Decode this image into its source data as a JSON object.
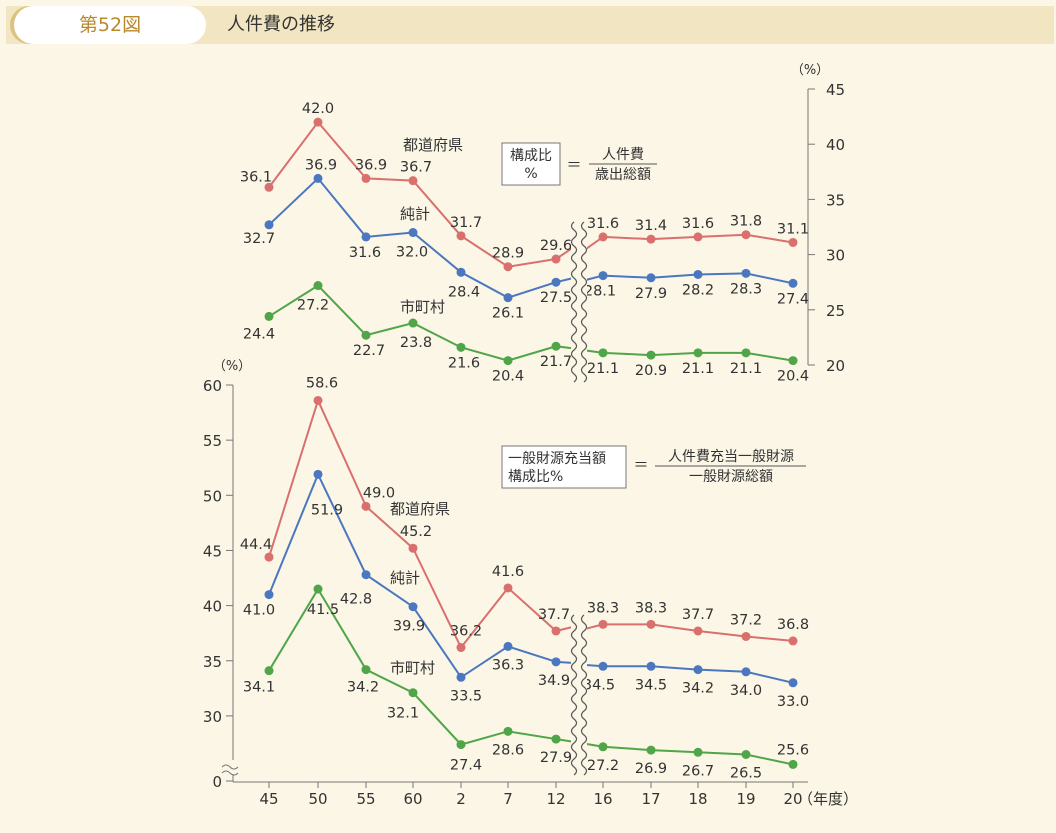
{
  "header": {
    "figure_number": "第52図",
    "title": "人件費の推移"
  },
  "chart_data": [
    {
      "type": "line",
      "title": "",
      "unit": "（%）",
      "axis_side": "right",
      "ylim": [
        20,
        45
      ],
      "yticks": [
        20,
        25,
        30,
        35,
        40,
        45
      ],
      "categories": [
        "45",
        "50",
        "55",
        "60",
        "2",
        "7",
        "12",
        "16",
        "17",
        "18",
        "19",
        "20"
      ],
      "break_after": "12",
      "series": [
        {
          "name": "都道府県",
          "color": "#d9706e",
          "values": [
            36.1,
            42.0,
            36.9,
            36.7,
            31.7,
            28.9,
            29.6,
            31.6,
            31.4,
            31.6,
            31.8,
            31.1
          ]
        },
        {
          "name": "純計",
          "color": "#4a77bf",
          "values": [
            32.7,
            36.9,
            31.6,
            32.0,
            28.4,
            26.1,
            27.5,
            28.1,
            27.9,
            28.2,
            28.3,
            27.4
          ]
        },
        {
          "name": "市町村",
          "color": "#4fa548",
          "values": [
            24.4,
            27.2,
            22.7,
            23.8,
            21.6,
            20.4,
            21.7,
            21.1,
            20.9,
            21.1,
            21.1,
            20.4
          ]
        }
      ],
      "formula": {
        "lhs": [
          "構成比",
          "%"
        ],
        "eq": "＝",
        "numerator": "人件費",
        "denominator": "歳出総額"
      }
    },
    {
      "type": "line",
      "title": "",
      "unit": "（%）",
      "axis_side": "left",
      "ylim": [
        25,
        60
      ],
      "yticks": [
        0,
        30,
        35,
        40,
        45,
        50,
        55,
        60
      ],
      "axis_break": "0〜25",
      "categories": [
        "45",
        "50",
        "55",
        "60",
        "2",
        "7",
        "12",
        "16",
        "17",
        "18",
        "19",
        "20"
      ],
      "xlabel": "（年度）",
      "break_after": "12",
      "series": [
        {
          "name": "都道府県",
          "color": "#d9706e",
          "values": [
            44.4,
            58.6,
            49.0,
            45.2,
            36.2,
            41.6,
            37.7,
            38.3,
            38.3,
            37.7,
            37.2,
            36.8
          ]
        },
        {
          "name": "純計",
          "color": "#4a77bf",
          "values": [
            41.0,
            51.9,
            42.8,
            39.9,
            33.5,
            36.3,
            34.9,
            34.5,
            34.5,
            34.2,
            34.0,
            33.0
          ]
        },
        {
          "name": "市町村",
          "color": "#4fa548",
          "values": [
            34.1,
            41.5,
            34.2,
            32.1,
            27.4,
            28.6,
            27.9,
            27.2,
            26.9,
            26.7,
            26.5,
            25.6
          ]
        }
      ],
      "formula": {
        "lhs": [
          "一般財源充当額",
          "構成比%"
        ],
        "eq": "＝",
        "numerator": "人件費充当一般財源",
        "denominator": "一般財源総額"
      }
    }
  ]
}
